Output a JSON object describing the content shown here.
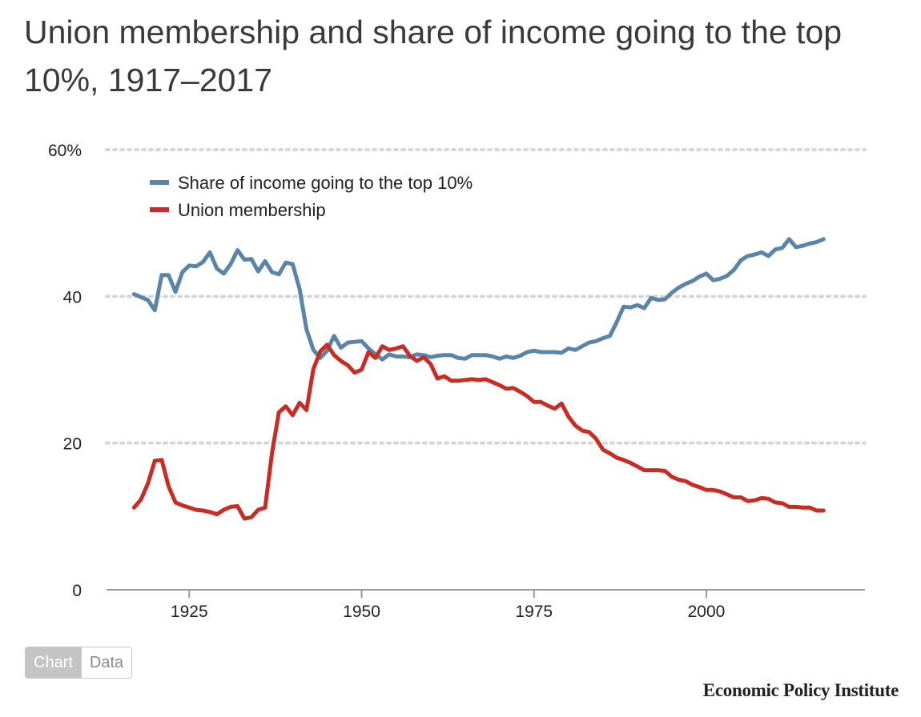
{
  "header": {
    "title": "Union membership and share of income going to the top 10%, 1917–2017"
  },
  "toggle": {
    "chart_label": "Chart",
    "data_label": "Data",
    "active": "Chart"
  },
  "footer": {
    "source": "Economic Policy Institute"
  },
  "colors": {
    "income_series": "#5a84a8",
    "union_series": "#c62d24",
    "grid": "#d7d7d7",
    "axis": "#999999"
  },
  "chart_data": {
    "type": "line",
    "title": "Union membership and share of income going to the top 10%, 1917–2017",
    "xlabel": "",
    "ylabel": "",
    "xlim": [
      1913,
      2023
    ],
    "ylim": [
      0,
      60
    ],
    "x_ticks": [
      1925,
      1950,
      1975,
      2000
    ],
    "x_tick_labels": [
      "1925",
      "1950",
      "1975",
      "2000"
    ],
    "y_ticks": [
      0,
      20,
      40,
      60
    ],
    "y_tick_labels": [
      "0",
      "20",
      "40",
      "60%"
    ],
    "grid": "horizontal dotted",
    "legend_position": "top-left",
    "series": [
      {
        "name": "Share of income going to the top 10%",
        "color": "#5a84a8",
        "x": [
          1917,
          1918,
          1919,
          1920,
          1921,
          1922,
          1923,
          1924,
          1925,
          1926,
          1927,
          1928,
          1929,
          1930,
          1931,
          1932,
          1933,
          1934,
          1935,
          1936,
          1937,
          1938,
          1939,
          1940,
          1941,
          1942,
          1943,
          1944,
          1945,
          1946,
          1947,
          1948,
          1949,
          1950,
          1951,
          1952,
          1953,
          1954,
          1955,
          1956,
          1957,
          1958,
          1959,
          1960,
          1961,
          1962,
          1963,
          1964,
          1965,
          1966,
          1967,
          1968,
          1969,
          1970,
          1971,
          1972,
          1973,
          1974,
          1975,
          1976,
          1977,
          1978,
          1979,
          1980,
          1981,
          1982,
          1983,
          1984,
          1985,
          1986,
          1987,
          1988,
          1989,
          1990,
          1991,
          1992,
          1993,
          1994,
          1995,
          1996,
          1997,
          1998,
          1999,
          2000,
          2001,
          2002,
          2003,
          2004,
          2005,
          2006,
          2007,
          2008,
          2009,
          2010,
          2011,
          2012,
          2013,
          2014,
          2015,
          2016,
          2017
        ],
        "values": [
          40.3,
          39.9,
          39.5,
          38.1,
          42.9,
          42.9,
          40.6,
          43.3,
          44.2,
          44.1,
          44.7,
          46.0,
          43.8,
          43.1,
          44.4,
          46.3,
          45.0,
          45.1,
          43.4,
          44.8,
          43.3,
          43.0,
          44.6,
          44.4,
          41.0,
          35.5,
          32.7,
          31.6,
          32.6,
          34.6,
          33.0,
          33.7,
          33.8,
          33.9,
          32.9,
          32.1,
          31.4,
          32.1,
          31.8,
          31.8,
          31.7,
          32.1,
          32.0,
          31.7,
          31.9,
          32.0,
          32.0,
          31.6,
          31.5,
          32.0,
          32.0,
          32.0,
          31.8,
          31.5,
          31.8,
          31.6,
          31.9,
          32.4,
          32.6,
          32.4,
          32.4,
          32.4,
          32.3,
          32.9,
          32.7,
          33.2,
          33.7,
          33.9,
          34.3,
          34.6,
          36.5,
          38.6,
          38.5,
          38.8,
          38.4,
          39.8,
          39.5,
          39.6,
          40.5,
          41.2,
          41.7,
          42.1,
          42.7,
          43.1,
          42.2,
          42.4,
          42.8,
          43.6,
          44.9,
          45.5,
          45.7,
          46.0,
          45.5,
          46.4,
          46.6,
          47.8,
          46.7,
          46.9,
          47.2,
          47.4,
          47.8
        ]
      },
      {
        "name": "Union membership",
        "color": "#c62d24",
        "x": [
          1917,
          1918,
          1919,
          1920,
          1921,
          1922,
          1923,
          1924,
          1925,
          1926,
          1927,
          1928,
          1929,
          1930,
          1931,
          1932,
          1933,
          1934,
          1935,
          1936,
          1937,
          1938,
          1939,
          1940,
          1941,
          1942,
          1943,
          1944,
          1945,
          1946,
          1947,
          1948,
          1949,
          1950,
          1951,
          1952,
          1953,
          1954,
          1955,
          1956,
          1957,
          1958,
          1959,
          1960,
          1961,
          1962,
          1963,
          1964,
          1965,
          1966,
          1967,
          1968,
          1969,
          1970,
          1971,
          1972,
          1973,
          1974,
          1975,
          1976,
          1977,
          1978,
          1979,
          1980,
          1981,
          1982,
          1983,
          1984,
          1985,
          1986,
          1987,
          1988,
          1989,
          1990,
          1991,
          1992,
          1993,
          1994,
          1995,
          1996,
          1997,
          1998,
          1999,
          2000,
          2001,
          2002,
          2003,
          2004,
          2005,
          2006,
          2007,
          2008,
          2009,
          2010,
          2011,
          2012,
          2013,
          2014,
          2015,
          2016,
          2017
        ],
        "values": [
          11.2,
          12.3,
          14.5,
          17.6,
          17.7,
          14.1,
          11.9,
          11.5,
          11.2,
          10.9,
          10.8,
          10.6,
          10.3,
          10.9,
          11.3,
          11.4,
          9.7,
          9.9,
          10.9,
          11.2,
          18.6,
          24.2,
          25.0,
          23.8,
          25.5,
          24.5,
          30.1,
          32.5,
          33.4,
          32.0,
          31.2,
          30.6,
          29.6,
          30.0,
          32.4,
          31.6,
          33.2,
          32.7,
          32.9,
          33.2,
          31.9,
          31.2,
          31.7,
          30.8,
          28.8,
          29.1,
          28.5,
          28.5,
          28.6,
          28.7,
          28.6,
          28.7,
          28.3,
          27.9,
          27.4,
          27.5,
          27.0,
          26.4,
          25.6,
          25.6,
          25.1,
          24.7,
          25.4,
          23.6,
          22.4,
          21.7,
          21.5,
          20.6,
          19.1,
          18.6,
          18.0,
          17.7,
          17.3,
          16.8,
          16.3,
          16.3,
          16.3,
          16.2,
          15.4,
          15.0,
          14.8,
          14.3,
          14.0,
          13.6,
          13.6,
          13.4,
          13.0,
          12.6,
          12.6,
          12.1,
          12.2,
          12.5,
          12.4,
          11.9,
          11.8,
          11.3,
          11.3,
          11.2,
          11.2,
          10.8,
          10.8
        ]
      }
    ]
  }
}
